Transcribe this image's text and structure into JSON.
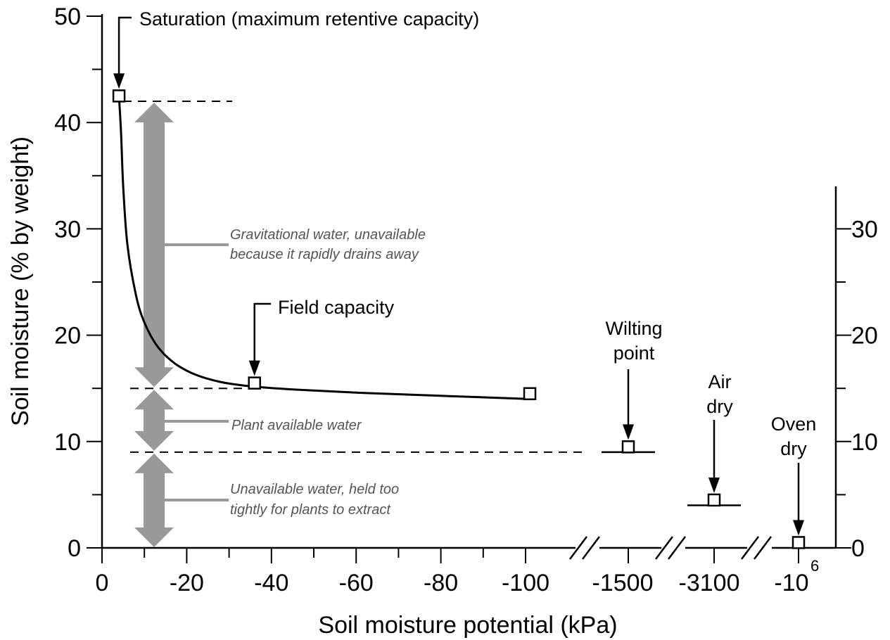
{
  "chart_data": {
    "type": "line",
    "xlabel": "Soil moisture potential (kPa)",
    "ylabel": "Soil moisture (% by weight)",
    "ylim": [
      0,
      50
    ],
    "y_ticks": [
      "0",
      "10",
      "20",
      "30",
      "40",
      "50"
    ],
    "right_y_ticks": [
      "0",
      "10",
      "20",
      "30"
    ],
    "x_ticks": [
      "0",
      "-20",
      "-40",
      "-60",
      "-80",
      "-100"
    ],
    "x_break_labels": {
      "wilting": "-1500",
      "air": "-3100",
      "oven_base": "-10",
      "oven_exp": "6"
    },
    "curve": {
      "x": [
        -4,
        -4.5,
        -5,
        -6,
        -8,
        -10,
        -13,
        -17,
        -22,
        -28,
        -35,
        -45,
        -60,
        -80,
        -101
      ],
      "y": [
        42.5,
        39,
        34,
        28.5,
        23.8,
        21.2,
        19,
        17.4,
        16.3,
        15.6,
        15.2,
        14.9,
        14.6,
        14.3,
        14.0
      ]
    },
    "points": [
      {
        "x": -4,
        "y": 42.5
      },
      {
        "x": -36,
        "y": 15.5
      },
      {
        "x": -101,
        "y": 14.5
      }
    ],
    "break_points": [
      {
        "group": "wilting",
        "y": 9.5,
        "base_y": 9
      },
      {
        "group": "air",
        "y": 4.5,
        "base_y": 4
      },
      {
        "group": "oven",
        "y": 0.5,
        "base_y": null
      }
    ],
    "levels": {
      "saturation": 42,
      "field_capacity": 15,
      "wilting": 9
    },
    "annotations": {
      "saturation": "Saturation (maximum retentive capacity)",
      "field_capacity": "Field capacity",
      "wilting_1": "Wilting",
      "wilting_2": "point",
      "air_1": "Air",
      "air_2": "dry",
      "oven_1": "Oven",
      "oven_2": "dry",
      "gravitational_1": "Gravitational water, unavailable",
      "gravitational_2": "because it rapidly drains away",
      "plant_available": "Plant available water",
      "unavailable_1": "Unavailable water, held too",
      "unavailable_2": "tightly for plants to extract"
    },
    "colors": {
      "line": "#000000",
      "band_arrow": "#999999",
      "note_text": "#555555"
    }
  }
}
